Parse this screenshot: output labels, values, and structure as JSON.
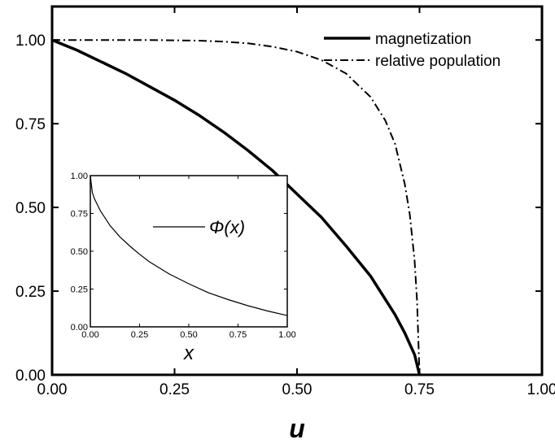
{
  "chart_data": [
    {
      "type": "line",
      "xlabel": "u",
      "ylabel": "",
      "xlim": [
        0,
        1
      ],
      "ylim": [
        0,
        1.1
      ],
      "xticks": [
        "0.00",
        "0.25",
        "0.50",
        "0.75",
        "1.00"
      ],
      "yticks": [
        "0.00",
        "0.25",
        "0.50",
        "0.75",
        "1.00"
      ],
      "legend_position": "top-right",
      "grid": false,
      "series": [
        {
          "name": "magnetization",
          "style": "solid-thick",
          "x": [
            0,
            0.05,
            0.1,
            0.15,
            0.2,
            0.25,
            0.3,
            0.35,
            0.4,
            0.45,
            0.5,
            0.55,
            0.6,
            0.65,
            0.7,
            0.72,
            0.74,
            0.75
          ],
          "y": [
            1.0,
            0.97,
            0.935,
            0.9,
            0.86,
            0.82,
            0.775,
            0.725,
            0.67,
            0.61,
            0.54,
            0.47,
            0.385,
            0.295,
            0.18,
            0.125,
            0.06,
            0.0
          ]
        },
        {
          "name": "relative population",
          "style": "dash-dot",
          "x": [
            0,
            0.1,
            0.2,
            0.3,
            0.35,
            0.4,
            0.45,
            0.5,
            0.55,
            0.6,
            0.65,
            0.68,
            0.7,
            0.72,
            0.73,
            0.74,
            0.745,
            0.75
          ],
          "y": [
            1.0,
            1.0,
            1.0,
            0.998,
            0.995,
            0.99,
            0.98,
            0.965,
            0.94,
            0.9,
            0.83,
            0.76,
            0.69,
            0.57,
            0.48,
            0.34,
            0.22,
            0.0
          ]
        }
      ]
    },
    {
      "type": "line",
      "xlabel": "x",
      "ylabel": "",
      "xlim": [
        0,
        1
      ],
      "ylim": [
        0,
        1
      ],
      "xticks": [
        "0.00",
        "0.25",
        "0.50",
        "0.75",
        "1.00"
      ],
      "yticks": [
        "0.00",
        "0.25",
        "0.50",
        "0.75",
        "1.00"
      ],
      "legend_position": "upper-center",
      "grid": false,
      "series": [
        {
          "name": "Φ(x)",
          "style": "solid-thin",
          "x": [
            0,
            0.01,
            0.02,
            0.05,
            0.1,
            0.15,
            0.2,
            0.25,
            0.3,
            0.4,
            0.5,
            0.6,
            0.7,
            0.8,
            0.9,
            1.0
          ],
          "y": [
            1.0,
            0.89,
            0.85,
            0.77,
            0.67,
            0.595,
            0.535,
            0.48,
            0.43,
            0.35,
            0.285,
            0.225,
            0.18,
            0.14,
            0.105,
            0.075
          ]
        }
      ]
    }
  ]
}
